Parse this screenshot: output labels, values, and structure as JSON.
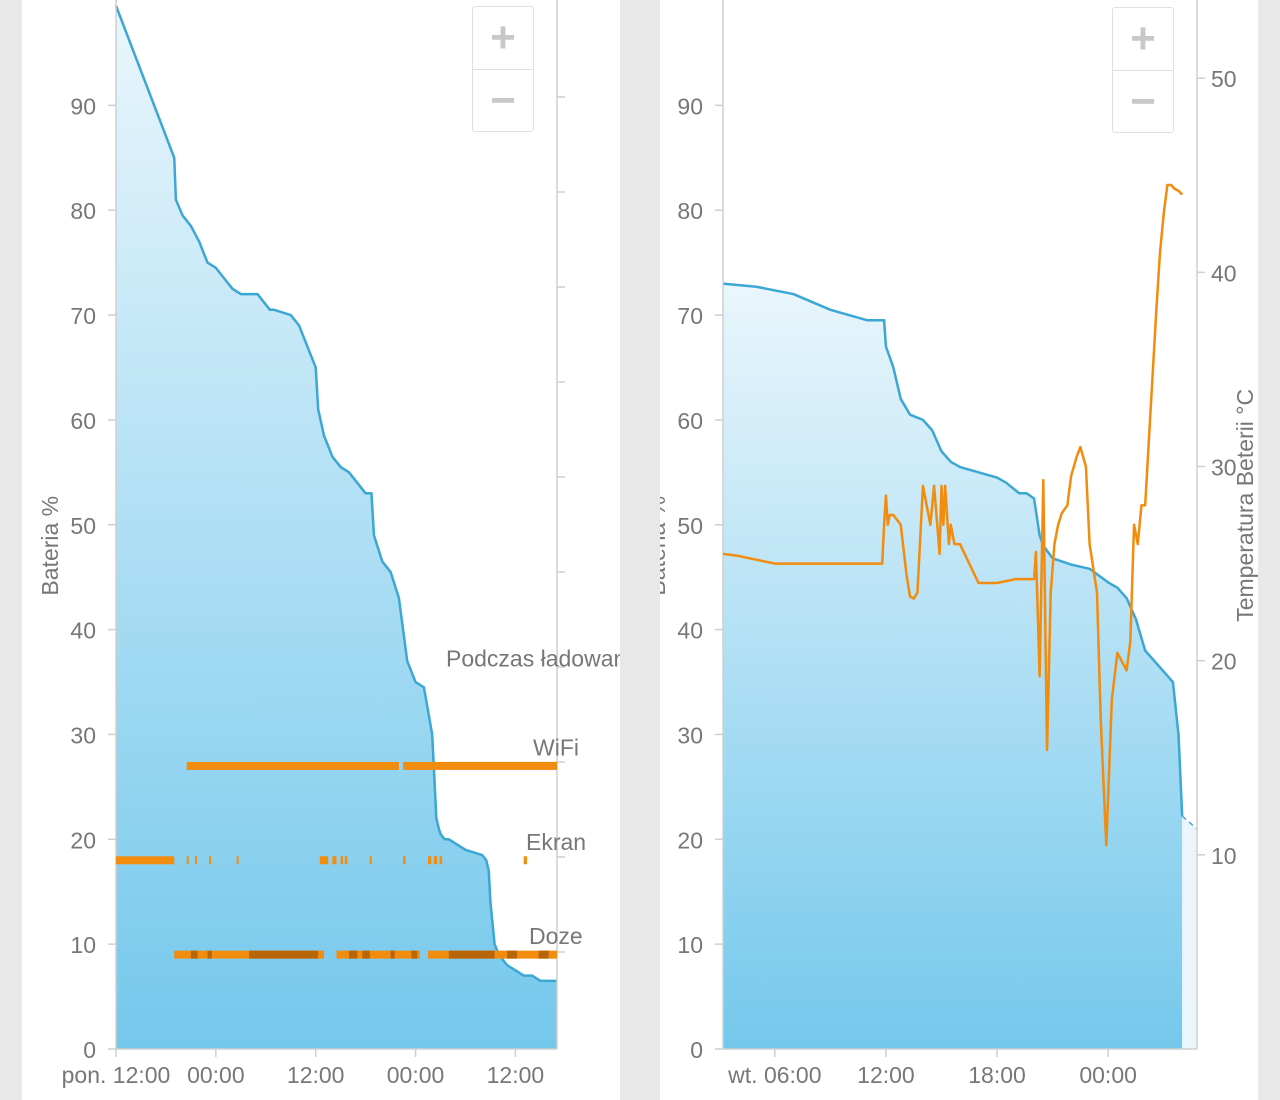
{
  "colors": {
    "battery_line": "#3aa7d4",
    "battery_fill_top": "#eaf6fc",
    "battery_fill_bottom": "#74c8ec",
    "orange": "#f28c0f",
    "orange_dark": "#b86508",
    "axis": "#cfcfcf",
    "label": "#777777"
  },
  "zoom": {
    "plus": "+",
    "minus": "−"
  },
  "chart_data": [
    {
      "type": "area",
      "ylabel": "Bateria %",
      "ylim": [
        0,
        100
      ],
      "yticks": [
        0,
        10,
        20,
        30,
        40,
        50,
        60,
        70,
        80,
        90
      ],
      "x_axis_unit": "hours from Monday 12:00",
      "xlim": [
        0,
        53
      ],
      "xtick_values": [
        0,
        12,
        24,
        36,
        48
      ],
      "xtick_labels": [
        "pon. 12:00",
        "00:00",
        "12:00",
        "00:00",
        "12:00"
      ],
      "battery": {
        "x": [
          0,
          7,
          7.2,
          8,
          9,
          10,
          11,
          12,
          13,
          14,
          15,
          17,
          18.5,
          19,
          21,
          22,
          24,
          24.3,
          25,
          26,
          27,
          28,
          28.5,
          29.5,
          30,
          30.7,
          31,
          32,
          33,
          34,
          34.5,
          35,
          36,
          37,
          38,
          38.5,
          38.8,
          39,
          39.5,
          40,
          41,
          42,
          44,
          44.5,
          44.8,
          45,
          45.5,
          46,
          47,
          48,
          49,
          50,
          51,
          53
        ],
        "y": [
          99.5,
          85,
          81,
          79.5,
          78.5,
          77,
          75,
          74.5,
          73.5,
          72.5,
          72,
          72,
          70.5,
          70.5,
          70,
          69,
          65,
          61,
          58.5,
          56.5,
          55.5,
          55,
          54.5,
          53.5,
          53,
          53,
          49,
          46.5,
          45.5,
          43,
          40,
          37,
          35,
          34.5,
          30,
          22,
          21,
          20.5,
          20,
          20,
          19.5,
          19,
          18.5,
          18,
          17,
          14,
          10,
          9,
          8,
          7.5,
          7,
          7,
          6.5,
          6.5
        ]
      },
      "overlay_labels": [
        "Podczas ładowania",
        "WiFi",
        "Ekran",
        "Doze"
      ],
      "tracks": [
        {
          "name": "WiFi",
          "level": 27,
          "segments": [
            [
              8.5,
              34
            ],
            [
              34.5,
              53
            ]
          ]
        },
        {
          "name": "Ekran",
          "level": 18,
          "segments": [
            [
              0,
              7
            ],
            [
              8.5,
              8.7
            ],
            [
              9.5,
              9.7
            ],
            [
              11.2,
              11.4
            ],
            [
              14.5,
              14.7
            ],
            [
              24.5,
              25.5
            ],
            [
              26,
              26.5
            ],
            [
              27,
              27.3
            ],
            [
              27.5,
              27.8
            ],
            [
              30.5,
              30.7
            ],
            [
              34.5,
              34.8
            ],
            [
              37.5,
              37.9
            ],
            [
              38.2,
              38.6
            ],
            [
              38.9,
              39.2
            ],
            [
              49,
              49.4
            ]
          ]
        },
        {
          "name": "Doze",
          "level": 9,
          "segments": [
            [
              7,
              25
            ],
            [
              26.5,
              36.5
            ],
            [
              37.5,
              53
            ]
          ]
        }
      ],
      "dark_segments": [
        [
          9,
          9.8
        ],
        [
          11,
          11.5
        ],
        [
          16,
          24.3
        ],
        [
          28,
          29
        ],
        [
          29.6,
          30.5
        ],
        [
          33,
          33.5
        ],
        [
          35.5,
          36.2
        ],
        [
          40,
          45.5
        ],
        [
          47,
          48.2
        ],
        [
          50.8,
          52
        ]
      ]
    },
    {
      "type": "line",
      "ylabel": "Bateria %",
      "ylabel2": "Temperatura Beterii °C",
      "ylim": [
        0,
        100
      ],
      "yticks": [
        0,
        10,
        20,
        30,
        40,
        50,
        60,
        70,
        80,
        90
      ],
      "y2lim": [
        0,
        54
      ],
      "y2ticks": [
        10,
        20,
        30,
        40,
        50
      ],
      "x_axis_unit": "hours from Tuesday 00:00",
      "xlim": [
        3.2,
        28.8
      ],
      "xtick_values": [
        6,
        12,
        18,
        24
      ],
      "xtick_labels": [
        "wt. 06:00",
        "12:00",
        "18:00",
        "00:00"
      ],
      "battery": {
        "x": [
          3.2,
          5,
          7,
          9,
          10,
          11,
          11.9,
          12,
          12.4,
          12.8,
          13.3,
          14,
          14.5,
          15,
          15.5,
          16,
          17,
          18,
          18.5,
          19.2,
          19.6,
          20,
          20.3,
          20.5,
          21,
          21.5,
          22,
          23,
          24,
          24.5,
          25,
          25.5,
          26,
          26.5,
          27,
          27.5,
          27.8,
          28
        ],
        "y": [
          73,
          72.7,
          72,
          70.5,
          70,
          69.5,
          69.5,
          67,
          65,
          62,
          60.5,
          60,
          59,
          57,
          56,
          55.5,
          55,
          54.5,
          54,
          53,
          53,
          52.5,
          49,
          48,
          46.8,
          46.5,
          46.2,
          45.8,
          44.5,
          44,
          43,
          41,
          38,
          37,
          36,
          35,
          30,
          22.2
        ]
      },
      "battery_projection": {
        "x": [
          28,
          28.8
        ],
        "y": [
          22.2,
          21
        ]
      },
      "temperature": {
        "x": [
          3.2,
          4,
          6,
          8,
          10,
          11.8,
          11.9,
          12,
          12.1,
          12.2,
          12.4,
          12.8,
          13.1,
          13.3,
          13.5,
          13.7,
          14,
          14.4,
          14.6,
          14.9,
          15,
          15.1,
          15.2,
          15.4,
          15.5,
          15.7,
          15.8,
          16,
          16.5,
          17,
          17.5,
          18,
          19,
          20,
          20.1,
          20.3,
          20.5,
          20.7,
          20.9,
          21.1,
          21.3,
          21.5,
          21.8,
          22,
          22.3,
          22.5,
          22.8,
          23,
          23.4,
          23.6,
          23.9,
          24.2,
          24.5,
          25,
          25.2,
          25.4,
          25.6,
          25.8,
          26,
          26.3,
          26.6,
          26.8,
          27,
          27.2,
          27.4,
          27.6,
          27.8,
          28
        ],
        "y": [
          25.5,
          25.4,
          25,
          25,
          25,
          25,
          27,
          28.5,
          27,
          27.5,
          27.5,
          27,
          24.5,
          23.3,
          23.2,
          23.5,
          29,
          27,
          29,
          25.5,
          29,
          27,
          29,
          26,
          27,
          26,
          26,
          26,
          25,
          24,
          24,
          24,
          24.2,
          24.2,
          25.6,
          19.2,
          29.3,
          15.4,
          23.5,
          26,
          27,
          27.6,
          28,
          29.5,
          30.5,
          31,
          30,
          26,
          23.5,
          17,
          10.5,
          18,
          20.4,
          19.5,
          21,
          27,
          26,
          28,
          28,
          33,
          38,
          41,
          43,
          44.5,
          44.5,
          44.3,
          44.2,
          44
        ]
      }
    }
  ]
}
